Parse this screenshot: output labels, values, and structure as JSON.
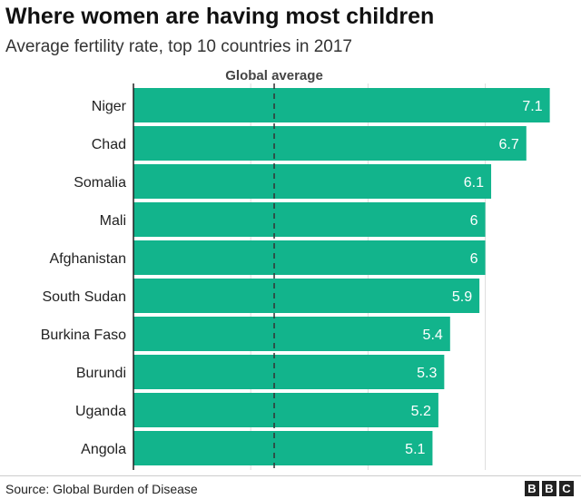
{
  "chart_data": {
    "type": "bar",
    "orientation": "horizontal",
    "title": "Where women are having most children",
    "subtitle": "Average fertility rate, top 10 countries in 2017",
    "categories": [
      "Niger",
      "Chad",
      "Somalia",
      "Mali",
      "Afghanistan",
      "South Sudan",
      "Burkina Faso",
      "Burundi",
      "Uganda",
      "Angola"
    ],
    "values": [
      7.1,
      6.7,
      6.1,
      6,
      6,
      5.9,
      5.4,
      5.3,
      5.2,
      5.1
    ],
    "value_labels": [
      "7.1",
      "6.7",
      "6.1",
      "6",
      "6",
      "5.9",
      "5.4",
      "5.3",
      "5.2",
      "5.1"
    ],
    "xlim": [
      0,
      7.4
    ],
    "reference_line": {
      "label": "Global average",
      "value": 2.4
    },
    "grid": true,
    "bar_color": "#12b48c"
  },
  "footer": {
    "source": "Source: Global Burden of Disease",
    "logo_letters": [
      "B",
      "B",
      "C"
    ]
  }
}
